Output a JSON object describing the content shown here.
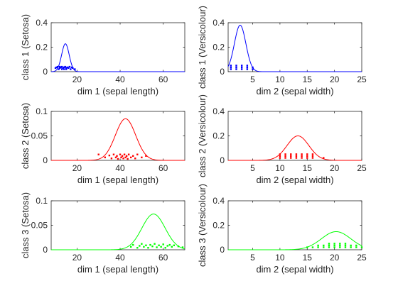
{
  "figure": {
    "background": "#ffffff",
    "axis_color": "#262626"
  },
  "chart_data": [
    {
      "type": "line",
      "row": 0,
      "col": 0,
      "xlabel": "dim 1 (sepal length)",
      "ylabel": "class 1 (Setosa)",
      "xlim": [
        8,
        70
      ],
      "ylim": [
        0,
        0.4
      ],
      "xticks": [
        20,
        40,
        60
      ],
      "yticks": [
        0,
        0.2,
        0.4
      ],
      "color": "#0000ff",
      "curve": {
        "mean": 14.6,
        "sd": 1.75,
        "peak": 0.228
      },
      "points": [
        10,
        10.5,
        11,
        11.5,
        12,
        12,
        12.5,
        13,
        13,
        13.5,
        14,
        14,
        14.5,
        15,
        15,
        15.5,
        16,
        16.5,
        17,
        17.5,
        18,
        19
      ],
      "points_y": [
        0.03,
        0.035,
        0.04,
        0.02,
        0.03,
        0.04,
        0.035,
        0.02,
        0.04,
        0.03,
        0.035,
        0.02,
        0.04,
        0.03,
        0.02,
        0.035,
        0.03,
        0.04,
        0.02,
        0.035,
        0.03,
        0.02
      ]
    },
    {
      "type": "line",
      "row": 0,
      "col": 1,
      "xlabel": "dim 2 (sepal width)",
      "ylabel": "class 1 (Versicolour)",
      "xlim": [
        0.5,
        25
      ],
      "ylim": [
        0,
        0.4
      ],
      "xticks": [
        5,
        10,
        15,
        20,
        25
      ],
      "yticks": [
        0,
        0.2,
        0.4
      ],
      "color": "#0000ff",
      "curve": {
        "mean": 2.7,
        "sd": 1.05,
        "peak": 0.38
      },
      "points": [
        1,
        1,
        1,
        2,
        2,
        2,
        3,
        3,
        3,
        4,
        4,
        4,
        5,
        5
      ],
      "points_y": [
        0.02,
        0.035,
        0.05,
        0.02,
        0.035,
        0.05,
        0.02,
        0.035,
        0.05,
        0.02,
        0.035,
        0.05,
        0.02,
        0.035
      ]
    },
    {
      "type": "line",
      "row": 1,
      "col": 0,
      "xlabel": "dim 1 (sepal length)",
      "ylabel": "class 2 (Setosa)",
      "xlim": [
        8,
        70
      ],
      "ylim": [
        0,
        0.1
      ],
      "xticks": [
        20,
        40,
        60
      ],
      "yticks": [
        0,
        0.05,
        0.1
      ],
      "color": "#ff0000",
      "curve": {
        "mean": 42.5,
        "sd": 4.7,
        "peak": 0.085
      },
      "points": [
        30,
        33,
        35,
        36,
        37,
        38,
        38.5,
        39,
        40,
        40.5,
        41,
        41.5,
        42,
        42.5,
        43,
        43.5,
        44,
        45,
        46,
        47,
        48,
        50,
        52
      ],
      "points_y": [
        0.012,
        0.006,
        0.01,
        0.004,
        0.012,
        0.006,
        0.009,
        0.003,
        0.012,
        0.006,
        0.009,
        0.004,
        0.012,
        0.006,
        0.009,
        0.003,
        0.012,
        0.006,
        0.009,
        0.004,
        0.012,
        0.006,
        0.009
      ]
    },
    {
      "type": "line",
      "row": 1,
      "col": 1,
      "xlabel": "dim 2 (sepal width)",
      "ylabel": "class 2 (Versicolour)",
      "xlim": [
        0.5,
        25
      ],
      "ylim": [
        0,
        0.4
      ],
      "xticks": [
        5,
        10,
        15,
        20,
        25
      ],
      "yticks": [
        0,
        0.2,
        0.4
      ],
      "color": "#ff0000",
      "curve": {
        "mean": 13.3,
        "sd": 2.0,
        "peak": 0.2
      },
      "points": [
        10,
        10,
        10,
        11,
        11,
        11,
        12,
        12,
        12,
        13,
        13,
        13,
        14,
        14,
        14,
        15,
        15,
        15,
        16,
        16,
        16,
        18
      ],
      "points_y": [
        0.02,
        0.035,
        0.05,
        0.02,
        0.035,
        0.05,
        0.02,
        0.035,
        0.05,
        0.02,
        0.035,
        0.05,
        0.02,
        0.035,
        0.05,
        0.02,
        0.035,
        0.05,
        0.02,
        0.035,
        0.05,
        0.02
      ]
    },
    {
      "type": "line",
      "row": 2,
      "col": 0,
      "xlabel": "dim 1 (sepal length)",
      "ylabel": "class 3 (Setosa)",
      "xlim": [
        8,
        70
      ],
      "ylim": [
        0,
        0.1
      ],
      "xticks": [
        20,
        40,
        60
      ],
      "yticks": [
        0,
        0.05,
        0.1
      ],
      "color": "#00ff00",
      "curve": {
        "mean": 55.5,
        "sd": 5.4,
        "peak": 0.073
      },
      "points": [
        45,
        46,
        48,
        49,
        50,
        51,
        52,
        53,
        54,
        55,
        56,
        57,
        58,
        59,
        60,
        61,
        62,
        63,
        64,
        65,
        67,
        69
      ],
      "points_y": [
        0.006,
        0.01,
        0.004,
        0.008,
        0.012,
        0.006,
        0.009,
        0.004,
        0.01,
        0.007,
        0.012,
        0.005,
        0.009,
        0.006,
        0.011,
        0.004,
        0.008,
        0.01,
        0.006,
        0.009,
        0.007,
        0.005
      ]
    },
    {
      "type": "line",
      "row": 2,
      "col": 1,
      "xlabel": "dim 2 (sepal width)",
      "ylabel": "class 3 (Versicolour)",
      "xlim": [
        0.5,
        25
      ],
      "ylim": [
        0,
        0.4
      ],
      "xticks": [
        5,
        10,
        15,
        20,
        25
      ],
      "yticks": [
        0,
        0.2,
        0.4
      ],
      "color": "#00ff00",
      "curve": {
        "mean": 20.3,
        "sd": 2.7,
        "peak": 0.148
      },
      "points": [
        15,
        16,
        17,
        17,
        18,
        18,
        19,
        19,
        19,
        20,
        20,
        20,
        21,
        21,
        21,
        22,
        22,
        22,
        23,
        23,
        24,
        24,
        25
      ],
      "points_y": [
        0.02,
        0.02,
        0.02,
        0.035,
        0.02,
        0.035,
        0.02,
        0.035,
        0.05,
        0.02,
        0.035,
        0.05,
        0.02,
        0.035,
        0.05,
        0.02,
        0.035,
        0.05,
        0.02,
        0.035,
        0.02,
        0.035,
        0.02
      ]
    }
  ]
}
